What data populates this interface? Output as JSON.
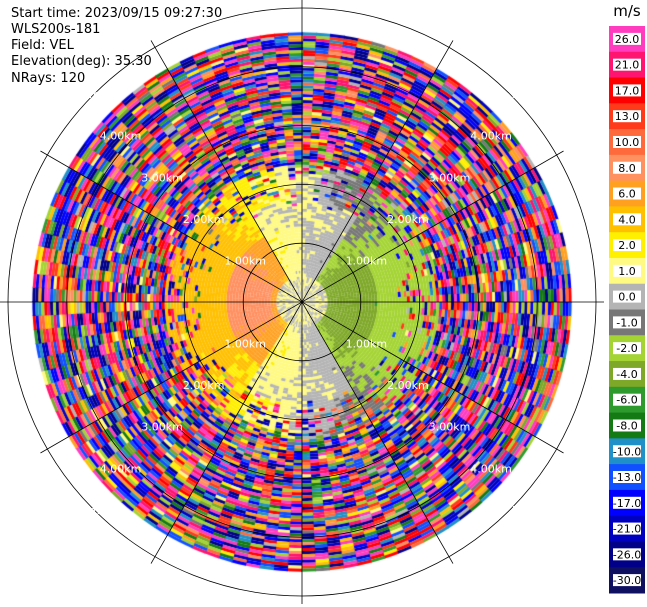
{
  "info": {
    "start_time": "Start time: 2023/09/15 09:27:30",
    "instrument": "WLS200s-181",
    "field": "Field: VEL",
    "elevation": "Elevation(deg): 35.30",
    "nrays": "NRays: 120"
  },
  "chart_data": {
    "type": "heatmap",
    "subtype": "polar-ppi",
    "field": "VEL",
    "units": "m/s",
    "ring_labels": [
      "1.00km",
      "2.00km",
      "3.00km",
      "4.00km",
      "5.00km"
    ],
    "ring_ranges_km": [
      1,
      2,
      3,
      4,
      5
    ],
    "max_range_km": 6.4,
    "nrays": 120,
    "colorbar": {
      "label": "m/s",
      "ticks": [
        "26.0",
        "21.0",
        "17.0",
        "13.0",
        "10.0",
        "8.0",
        "6.0",
        "4.0",
        "2.0",
        "1.0",
        "0.0",
        "-1.0",
        "-2.0",
        "-4.0",
        "-6.0",
        "-8.0",
        "-10.0",
        "-13.0",
        "-17.0",
        "-21.0",
        "-26.0",
        "-30.0"
      ],
      "colors": [
        "#ff3cc0",
        "#ff1470",
        "#ff0000",
        "#ff3a1a",
        "#ff6a3c",
        "#ff9060",
        "#ffa020",
        "#ffc000",
        "#ffef00",
        "#fffa82",
        "#b4b4b4",
        "#777777",
        "#a4d434",
        "#7ea828",
        "#2e9a2e",
        "#147a14",
        "#2090c8",
        "#1050ff",
        "#0000ff",
        "#0000c0",
        "#000088",
        "#101060"
      ]
    },
    "velocity_pattern": {
      "near_field": "grey near centre",
      "west_max_ms": 7,
      "east_min_ms": -6,
      "far_field": "noise beyond ~3.2 km"
    }
  }
}
